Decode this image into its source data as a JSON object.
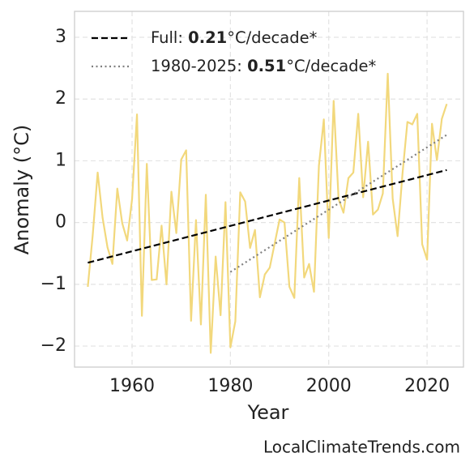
{
  "chart_data": {
    "type": "line",
    "xlabel": "Year",
    "ylabel": "Anomaly (°C)",
    "source": "LocalClimateTrends.com",
    "xlim": [
      1948.3,
      2027.4
    ],
    "ylim": [
      -2.34,
      3.42
    ],
    "xticks": [
      1960,
      1980,
      2000,
      2020
    ],
    "yticks": [
      {
        "value": -2,
        "label": "−2"
      },
      {
        "value": -1,
        "label": "−1"
      },
      0,
      1,
      2,
      3
    ],
    "grid": true,
    "series": [
      {
        "color": "#f2d87c",
        "style": "solid",
        "x": [
          1951,
          1952,
          1953,
          1954,
          1955,
          1956,
          1957,
          1958,
          1959,
          1960,
          1961,
          1962,
          1963,
          1964,
          1965,
          1966,
          1967,
          1968,
          1969,
          1970,
          1971,
          1972,
          1973,
          1974,
          1975,
          1976,
          1977,
          1978,
          1979,
          1980,
          1981,
          1982,
          1983,
          1984,
          1985,
          1986,
          1987,
          1988,
          1989,
          1990,
          1991,
          1992,
          1993,
          1994,
          1995,
          1996,
          1997,
          1998,
          1999,
          2000,
          2001,
          2002,
          2003,
          2004,
          2005,
          2006,
          2007,
          2008,
          2009,
          2010,
          2011,
          2012,
          2013,
          2014,
          2015,
          2016,
          2017,
          2018,
          2019,
          2020,
          2021,
          2022,
          2023,
          2024
        ],
        "values": [
          -1.04,
          -0.2,
          0.81,
          0.08,
          -0.4,
          -0.67,
          0.55,
          -0.01,
          -0.29,
          0.38,
          1.75,
          -1.51,
          0.95,
          -0.93,
          -0.92,
          -0.05,
          -1.0,
          0.5,
          -0.17,
          1.02,
          1.17,
          -1.59,
          0.04,
          -1.65,
          0.45,
          -2.11,
          -0.55,
          -1.5,
          0.33,
          -2.02,
          -1.6,
          0.49,
          0.34,
          -0.41,
          -0.12,
          -1.21,
          -0.84,
          -0.73,
          -0.34,
          0.05,
          0.0,
          -1.04,
          -1.22,
          0.72,
          -0.89,
          -0.67,
          -1.12,
          0.92,
          1.67,
          -0.25,
          1.97,
          0.38,
          0.16,
          0.72,
          0.81,
          1.76,
          0.41,
          1.31,
          0.13,
          0.21,
          0.47,
          2.41,
          0.39,
          -0.22,
          0.79,
          1.63,
          1.59,
          1.76,
          -0.35,
          -0.6,
          1.6,
          1.01,
          1.68,
          1.92
        ]
      },
      {
        "name": [
          "Full: ",
          "0.21",
          "°C/decade*"
        ],
        "color": "#000000",
        "style": "dashed",
        "x": [
          1951,
          2024
        ],
        "values": [
          -0.65,
          0.85
        ]
      },
      {
        "name": [
          "1980-2025: ",
          "0.51",
          "°C/decade*"
        ],
        "color": "#808080",
        "style": "dotted",
        "x": [
          1980,
          2024
        ],
        "values": [
          -0.8,
          1.42
        ]
      }
    ]
  }
}
